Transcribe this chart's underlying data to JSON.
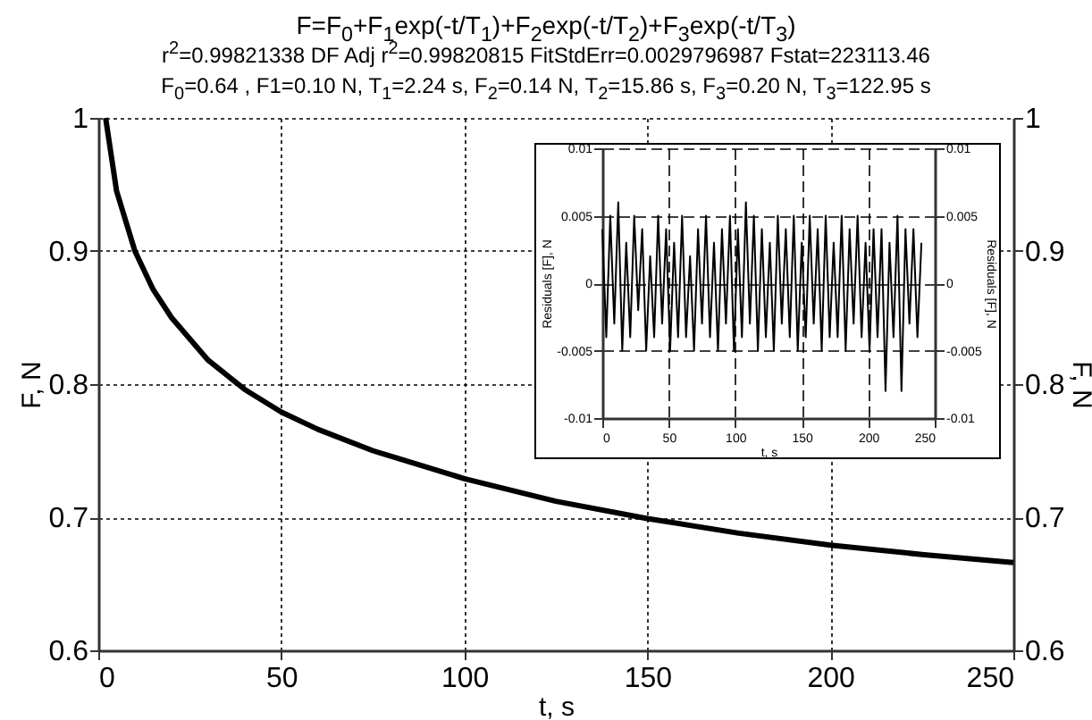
{
  "chart_data": [
    {
      "type": "line",
      "title": "F=F$_{0}$+F$_{1}$exp(-t/T$_{1}$)+F$_{2}$exp(-t/T$_{2}$)+F$_{3}$exp(-t/T$_{3}$)",
      "subtitle": "r$^{2}$=0.99821338  DF Adj r$^{2}$=0.99820815  FitStdErr=0.0029796987  Fstat=223113.46",
      "annotations": [
        "F$_{0}$=0.64 , F1=0.10 N, T$_{1}$=2.24 s, F$_{2}$=0.14 N, T$_{2}$=15.86 s, F$_{3}$=0.20 N, T$_{3}$=122.95 s"
      ],
      "xlabel": "t, s",
      "ylabel": "F, N",
      "y2label": "F, N",
      "x": [
        2,
        5,
        10,
        15,
        20,
        30,
        40,
        50,
        60,
        75,
        100,
        125,
        150,
        175,
        200,
        225,
        250
      ],
      "series": [
        {
          "color": "#000000",
          "values": [
            1.0,
            0.945,
            0.9,
            0.871,
            0.85,
            0.818,
            0.796,
            0.779,
            0.766,
            0.75,
            0.729,
            0.712,
            0.699,
            0.688,
            0.679,
            0.672,
            0.666
          ]
        }
      ],
      "xlim": [
        0,
        250
      ],
      "xticks": [
        0,
        50,
        100,
        150,
        200,
        250
      ],
      "ylim": [
        0.6,
        1
      ],
      "yticks": [
        0.6,
        0.7,
        0.8,
        0.9,
        1
      ],
      "y2lim": [
        0.6,
        1
      ],
      "y2ticks": [
        0.6,
        0.7,
        0.8,
        0.9,
        1
      ],
      "grid": true,
      "marker": "none",
      "line_style": "solid"
    },
    {
      "type": "line",
      "xlabel": "t, s",
      "ylabel": "Residuals [F], N",
      "y2label": "Residuals [F], N",
      "x": [
        0,
        3,
        6,
        9,
        12,
        15,
        18,
        21,
        24,
        27,
        30,
        33,
        36,
        39,
        42,
        45,
        48,
        51,
        54,
        57,
        60,
        63,
        66,
        69,
        72,
        75,
        78,
        81,
        84,
        87,
        90,
        93,
        96,
        99,
        102,
        105,
        108,
        111,
        114,
        117,
        120,
        123,
        126,
        129,
        132,
        135,
        138,
        141,
        144,
        147,
        150,
        153,
        156,
        159,
        162,
        165,
        168,
        171,
        174,
        177,
        180,
        183,
        186,
        189,
        192,
        195,
        198,
        201,
        204,
        207,
        210,
        213,
        216,
        219,
        222,
        225,
        228,
        231,
        234,
        237,
        240
      ],
      "series": [
        {
          "color": "#000000",
          "values": [
            0.004,
            -0.004,
            0.005,
            -0.003,
            0.006,
            -0.005,
            0.003,
            -0.004,
            0.005,
            -0.002,
            0.004,
            -0.005,
            0.002,
            -0.004,
            0.005,
            -0.003,
            0.004,
            -0.005,
            0.003,
            -0.004,
            0.005,
            -0.004,
            0.002,
            -0.005,
            0.004,
            -0.003,
            0.005,
            -0.004,
            0.003,
            -0.005,
            0.004,
            -0.003,
            0.005,
            -0.005,
            0.004,
            -0.004,
            0.006,
            -0.003,
            0.005,
            -0.005,
            0.004,
            -0.004,
            0.003,
            -0.005,
            0.005,
            -0.003,
            0.004,
            -0.004,
            0.005,
            -0.005,
            0.003,
            -0.004,
            0.005,
            -0.003,
            0.004,
            -0.005,
            0.005,
            -0.004,
            0.003,
            -0.004,
            0.005,
            -0.005,
            0.004,
            -0.003,
            0.005,
            -0.004,
            0.003,
            -0.005,
            0.004,
            -0.004,
            0.004,
            -0.008,
            0.003,
            -0.004,
            0.005,
            -0.008,
            0.004,
            -0.003,
            0.004,
            -0.004,
            0.003
          ]
        }
      ],
      "xlim": [
        0,
        250
      ],
      "xticks": [
        0,
        50,
        100,
        150,
        200,
        250
      ],
      "ylim": [
        -0.01,
        0.01
      ],
      "yticks": [
        -0.01,
        -0.005,
        0,
        0.005,
        0.01
      ],
      "y2lim": [
        -0.01,
        0.01
      ],
      "y2ticks": [
        -0.01,
        -0.005,
        0,
        0.005,
        0.01
      ],
      "grid": true,
      "marker": "none",
      "line_style": "solid"
    }
  ]
}
